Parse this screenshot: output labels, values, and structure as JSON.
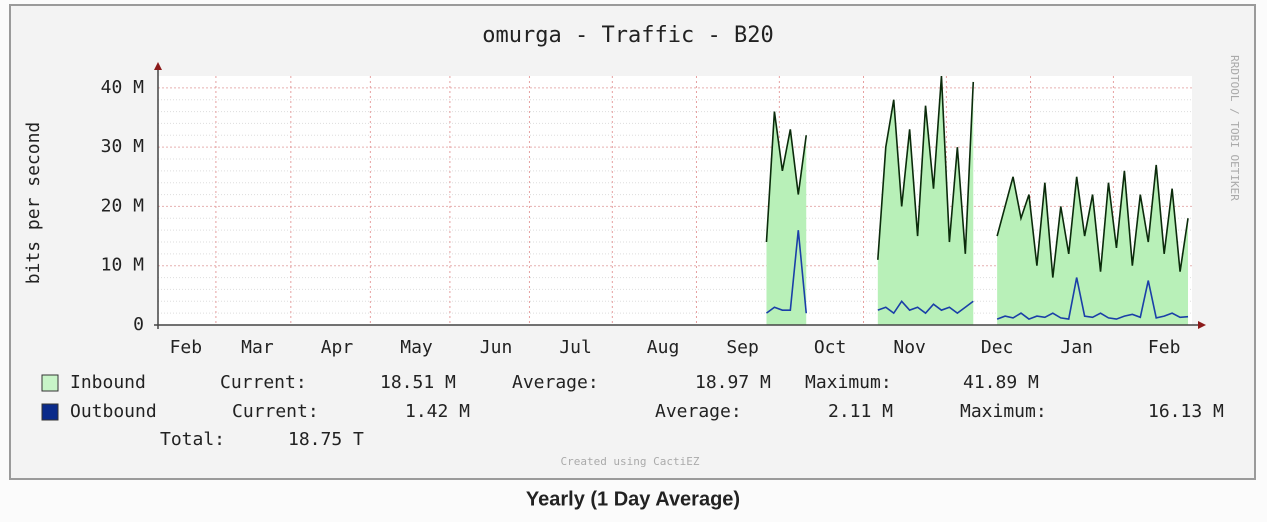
{
  "chart_data": {
    "type": "area",
    "title": "omurga - Traffic - B20",
    "ylabel": "bits per second",
    "side_note": "RRDTOOL / TOBI OETIKER",
    "credit": "Created using CactiEZ",
    "caption": "Yearly (1 Day Average)",
    "total": {
      "label": "Total:",
      "value": "18.75 T"
    },
    "categories": [
      null,
      null,
      null,
      "Feb",
      null,
      null,
      null,
      null,
      null,
      null,
      null,
      null,
      "Mar",
      null,
      null,
      null,
      null,
      null,
      null,
      null,
      null,
      null,
      "Apr",
      null,
      null,
      null,
      null,
      null,
      null,
      null,
      null,
      null,
      "May",
      null,
      null,
      null,
      null,
      null,
      null,
      null,
      null,
      null,
      "Jun",
      null,
      null,
      null,
      null,
      null,
      null,
      null,
      null,
      null,
      "Jul",
      null,
      null,
      null,
      null,
      null,
      null,
      null,
      null,
      null,
      null,
      "Aug",
      null,
      null,
      null,
      null,
      null,
      null,
      null,
      null,
      null,
      "Sep",
      null,
      null,
      null,
      null,
      null,
      null,
      null,
      null,
      null,
      null,
      "Oct",
      null,
      null,
      null,
      null,
      null,
      null,
      null,
      null,
      null,
      "Nov",
      null,
      null,
      null,
      null,
      null,
      null,
      null,
      null,
      null,
      null,
      "Dec",
      null,
      null,
      null,
      null,
      null,
      null,
      null,
      null,
      null,
      "Jan",
      null,
      null,
      null,
      null,
      null,
      null,
      null,
      null,
      null,
      null,
      "Feb",
      null,
      null,
      null
    ],
    "series": [
      {
        "name": "Inbound",
        "color": "#0b2b0b",
        "fill": "#b8f0b8",
        "legend_color": "#c8f4c8",
        "stats": [
          {
            "label": "Current:",
            "value": "18.51 M"
          },
          {
            "label": "Average:",
            "value": "18.97 M"
          },
          {
            "label": "Maximum:",
            "value": "41.89 M"
          }
        ],
        "values": [
          null,
          null,
          null,
          null,
          null,
          null,
          null,
          null,
          null,
          null,
          null,
          null,
          null,
          null,
          null,
          null,
          null,
          null,
          null,
          null,
          null,
          null,
          null,
          null,
          null,
          null,
          null,
          null,
          null,
          null,
          null,
          null,
          null,
          null,
          null,
          null,
          null,
          null,
          null,
          null,
          null,
          null,
          null,
          null,
          null,
          null,
          null,
          null,
          null,
          null,
          null,
          null,
          null,
          null,
          null,
          null,
          null,
          null,
          null,
          null,
          null,
          null,
          null,
          null,
          null,
          null,
          null,
          null,
          null,
          null,
          null,
          null,
          null,
          null,
          null,
          null,
          14,
          36,
          26,
          33,
          22,
          32,
          null,
          null,
          null,
          null,
          null,
          null,
          null,
          null,
          11,
          30,
          38,
          20,
          33,
          15,
          37,
          23,
          42,
          14,
          30,
          12,
          41,
          null,
          null,
          15,
          20,
          25,
          18,
          22,
          10,
          24,
          8,
          20,
          12,
          25,
          15,
          22,
          9,
          24,
          13,
          26,
          10,
          22,
          14,
          27,
          12,
          23,
          9,
          18
        ]
      },
      {
        "name": "Outbound",
        "color": "#1a3fa8",
        "legend_color": "#0a2a8a",
        "stats": [
          {
            "label": "Current:",
            "value": "1.42 M"
          },
          {
            "label": "Average:",
            "value": "2.11 M"
          },
          {
            "label": "Maximum:",
            "value": "16.13 M"
          }
        ],
        "values": [
          null,
          null,
          null,
          null,
          null,
          null,
          null,
          null,
          null,
          null,
          null,
          null,
          null,
          null,
          null,
          null,
          null,
          null,
          null,
          null,
          null,
          null,
          null,
          null,
          null,
          null,
          null,
          null,
          null,
          null,
          null,
          null,
          null,
          null,
          null,
          null,
          null,
          null,
          null,
          null,
          null,
          null,
          null,
          null,
          null,
          null,
          null,
          null,
          null,
          null,
          null,
          null,
          null,
          null,
          null,
          null,
          null,
          null,
          null,
          null,
          null,
          null,
          null,
          null,
          null,
          null,
          null,
          null,
          null,
          null,
          null,
          null,
          null,
          null,
          null,
          null,
          2,
          3,
          2.5,
          2.5,
          16,
          2,
          null,
          null,
          null,
          null,
          null,
          null,
          null,
          null,
          2.5,
          3,
          2,
          4,
          2.5,
          3,
          2,
          3.5,
          2.5,
          3,
          2,
          3,
          4,
          null,
          null,
          1,
          1.5,
          1.2,
          2,
          1,
          1.5,
          1.3,
          2,
          1.2,
          1,
          8,
          1.5,
          1.3,
          2,
          1.2,
          1,
          1.5,
          1.8,
          1.3,
          7.5,
          1.2,
          1.5,
          2,
          1.3,
          1.4
        ]
      }
    ],
    "ylim": [
      0,
      42
    ],
    "yticks": [
      {
        "value": 0,
        "label": "0"
      },
      {
        "value": 10,
        "label": "10 M"
      },
      {
        "value": 20,
        "label": "20 M"
      },
      {
        "value": 30,
        "label": "30 M"
      },
      {
        "value": 40,
        "label": "40 M"
      }
    ],
    "grid": true
  }
}
